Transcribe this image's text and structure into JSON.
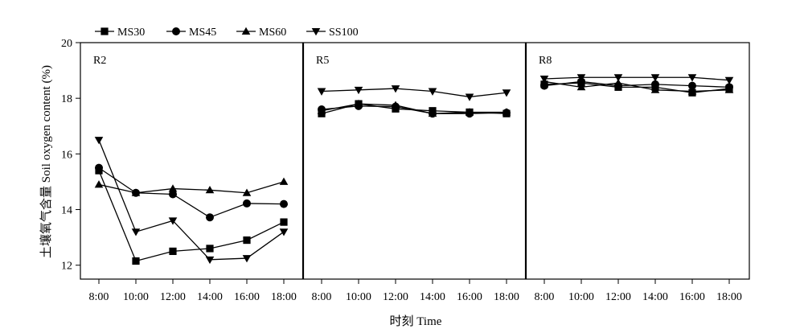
{
  "chart_data": {
    "type": "line",
    "ylabel": "土壤氧气含量 Soil oxygen content (%)",
    "xlabel": "时刻 Time",
    "ylim": [
      11.5,
      20
    ],
    "yticks": [
      12,
      14,
      16,
      18,
      20
    ],
    "categories": [
      "8:00",
      "10:00",
      "12:00",
      "14:00",
      "16:00",
      "18:00"
    ],
    "legend": {
      "placement": "top-left"
    },
    "series_style": [
      {
        "name": "MS30",
        "marker": "square"
      },
      {
        "name": "MS45",
        "marker": "circle"
      },
      {
        "name": "MS60",
        "marker": "triangle-up"
      },
      {
        "name": "SS100",
        "marker": "triangle-down"
      }
    ],
    "panels": [
      {
        "label": "R2",
        "series": [
          {
            "name": "MS30",
            "values": [
              15.4,
              12.15,
              12.5,
              12.6,
              12.9,
              13.55
            ]
          },
          {
            "name": "MS45",
            "values": [
              15.5,
              14.6,
              14.55,
              13.72,
              14.22,
              14.2
            ]
          },
          {
            "name": "MS60",
            "values": [
              14.9,
              14.6,
              14.75,
              14.7,
              14.6,
              15.0
            ]
          },
          {
            "name": "SS100",
            "values": [
              16.5,
              13.2,
              13.6,
              12.2,
              12.25,
              13.2
            ]
          }
        ]
      },
      {
        "label": "R5",
        "series": [
          {
            "name": "MS30",
            "values": [
              17.45,
              17.8,
              17.62,
              17.55,
              17.5,
              17.45
            ]
          },
          {
            "name": "MS45",
            "values": [
              17.6,
              17.72,
              17.7,
              17.45,
              17.45,
              17.48
            ]
          },
          {
            "name": "MS60",
            "values": [
              17.55,
              17.8,
              17.75,
              17.45,
              17.5,
              17.5
            ]
          },
          {
            "name": "SS100",
            "values": [
              18.25,
              18.3,
              18.35,
              18.25,
              18.05,
              18.2
            ]
          }
        ]
      },
      {
        "label": "R8",
        "series": [
          {
            "name": "MS30",
            "values": [
              18.5,
              18.55,
              18.4,
              18.4,
              18.2,
              18.35
            ]
          },
          {
            "name": "MS45",
            "values": [
              18.45,
              18.6,
              18.45,
              18.5,
              18.45,
              18.4
            ]
          },
          {
            "name": "MS60",
            "values": [
              18.6,
              18.4,
              18.55,
              18.3,
              18.25,
              18.3
            ]
          },
          {
            "name": "SS100",
            "values": [
              18.7,
              18.75,
              18.75,
              18.75,
              18.75,
              18.65
            ]
          }
        ]
      }
    ]
  }
}
